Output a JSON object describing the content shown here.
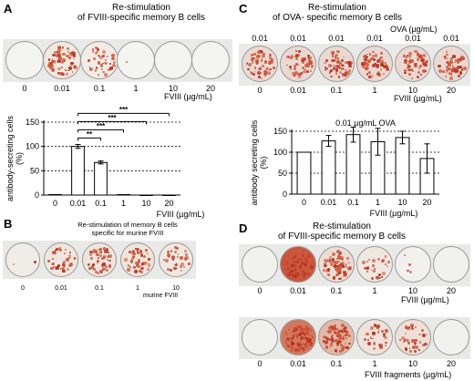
{
  "panelA": {
    "letter": "A",
    "title_l1": "Re-stimulation",
    "title_l2": "of FVIII-specific memory B cells",
    "well_labels": [
      "0",
      "0.01",
      "0.1",
      "1",
      "10",
      "20"
    ],
    "unit": "FVIII (µg/mL)"
  },
  "panelB": {
    "letter": "B",
    "title_l1": "Re-stimulation of memory B cells",
    "title_l2": "specific for murine FVIII",
    "well_labels": [
      "0",
      "0.01",
      "0.1",
      "1",
      "10"
    ],
    "unit": "murine FVIII"
  },
  "panelC": {
    "letter": "C",
    "title_l1": "Re-stimulation",
    "title_l2": "of OVA- specific memory B cells",
    "top_unit": "OVA (µg/mL)",
    "top_labels": [
      "0.01",
      "0.01",
      "0.01",
      "0.01",
      "0.01",
      "0.01"
    ],
    "well_labels": [
      "0",
      "0.01",
      "0.1",
      "1",
      "10",
      "20"
    ],
    "unit": "FVIII (µg/mL)"
  },
  "panelD": {
    "letter": "D",
    "title_l1": "Re-stimulation",
    "title_l2": "of FVIII-specific memory B cells",
    "row1_labels": [
      "0",
      "0.01",
      "0.1",
      "1",
      "10",
      "20"
    ],
    "row1_unit": "FVIII (µg/mL)",
    "row2_labels": [
      "0",
      "0.01",
      "0.1",
      "1",
      "10",
      "20"
    ],
    "row2_unit": "FVIII fragments (µg/mL)"
  },
  "chart_data": [
    {
      "type": "bar",
      "panel": "A",
      "categories": [
        "0",
        "0.01",
        "0.1",
        "1",
        "10",
        "20"
      ],
      "values": [
        1,
        100,
        67,
        1,
        0,
        0
      ],
      "errors": [
        0,
        4,
        3,
        0,
        0,
        0
      ],
      "xlabel": "FVIII (µg/mL)",
      "ylabel": "antibody-secreting cells (%)",
      "ylim": [
        0,
        150
      ],
      "yticks": [
        0,
        50,
        100,
        150
      ],
      "grid": "dotted horizontal at 50, 100, 150",
      "significance": [
        {
          "from": "0.01",
          "to": "0.1",
          "label": "**"
        },
        {
          "from": "0.01",
          "to": "1",
          "label": "***"
        },
        {
          "from": "0.01",
          "to": "10",
          "label": "***"
        },
        {
          "from": "0.01",
          "to": "20",
          "label": "***"
        }
      ]
    },
    {
      "type": "bar",
      "panel": "C",
      "title": "0.01 µg/mL OVA",
      "categories": [
        "0",
        "0.01",
        "0.1",
        "1",
        "10",
        "20"
      ],
      "values": [
        100,
        127,
        142,
        125,
        135,
        85
      ],
      "errors": [
        0,
        13,
        18,
        32,
        15,
        35
      ],
      "xlabel": "FVIII (µg/mL)",
      "ylabel": "antibody secreting cells (%)",
      "ylim": [
        0,
        150
      ],
      "yticks": [
        0,
        50,
        100,
        150
      ],
      "grid": "dotted horizontal at 50, 100, 150"
    }
  ]
}
